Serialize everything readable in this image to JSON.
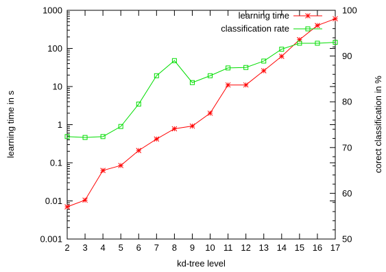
{
  "chart_data": {
    "type": "line",
    "title": "",
    "xlabel": "kd-tree level",
    "ylabel_left": "learning time in s",
    "ylabel_right": "corect classification in %",
    "xlim": [
      2,
      17
    ],
    "x_ticks": [
      "2",
      "3",
      "4",
      "5",
      "6",
      "7",
      "8",
      "9",
      "10",
      "11",
      "12",
      "13",
      "14",
      "15",
      "16",
      "17"
    ],
    "y_left_scale": "log",
    "y_left_lim": [
      0.001,
      1000
    ],
    "y_left_ticks": [
      {
        "value": 0.001,
        "label": "0.001"
      },
      {
        "value": 0.01,
        "label": "0.01"
      },
      {
        "value": 0.1,
        "label": "0.1"
      },
      {
        "value": 1,
        "label": "1"
      },
      {
        "value": 10,
        "label": "10"
      },
      {
        "value": 100,
        "label": "100"
      },
      {
        "value": 1000,
        "label": "1000"
      }
    ],
    "y_right_lim": [
      50,
      100
    ],
    "y_right_ticks": [
      {
        "value": 50,
        "label": "50"
      },
      {
        "value": 60,
        "label": "60"
      },
      {
        "value": 70,
        "label": "70"
      },
      {
        "value": 80,
        "label": "80"
      },
      {
        "value": 90,
        "label": "90"
      },
      {
        "value": 100,
        "label": "100"
      }
    ],
    "grid": false,
    "legend_position": "top-right",
    "series": [
      {
        "name": "learning time",
        "axis": "left",
        "color": "#ff0000",
        "marker": "star",
        "x": [
          2,
          3,
          4,
          5,
          6,
          7,
          8,
          9,
          10,
          11,
          12,
          13,
          14,
          15,
          16,
          17
        ],
        "values": [
          0.007,
          0.0105,
          0.063,
          0.085,
          0.21,
          0.42,
          0.78,
          0.92,
          2.0,
          11,
          11,
          26,
          62,
          170,
          400,
          600
        ]
      },
      {
        "name": "classification rate",
        "axis": "right",
        "color": "#00dd00",
        "marker": "square",
        "x": [
          2,
          3,
          4,
          5,
          6,
          7,
          8,
          9,
          10,
          11,
          12,
          13,
          14,
          15,
          16,
          17
        ],
        "values": [
          72.4,
          72.2,
          72.4,
          74.6,
          79.5,
          85.7,
          89.0,
          84.2,
          85.7,
          87.4,
          87.5,
          88.9,
          91.5,
          92.8,
          92.8,
          93.0
        ]
      }
    ]
  }
}
